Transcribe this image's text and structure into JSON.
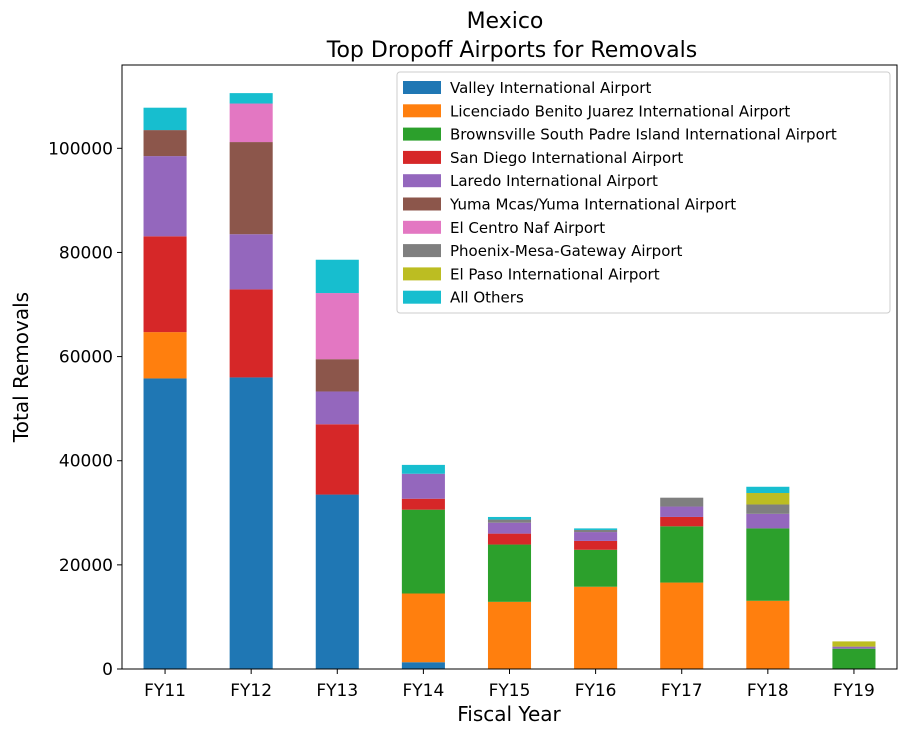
{
  "chart_data": {
    "type": "bar",
    "stacked": true,
    "title_line1": "Mexico",
    "title_line2": "Top Dropoff Airports for Removals",
    "xlabel": "Fiscal Year",
    "ylabel": "Total Removals",
    "categories": [
      "FY11",
      "FY12",
      "FY13",
      "FY14",
      "FY15",
      "FY16",
      "FY17",
      "FY18",
      "FY19"
    ],
    "ylim": [
      0,
      116000
    ],
    "yticks": [
      0,
      20000,
      40000,
      60000,
      80000,
      100000
    ],
    "legend_position": "top-right",
    "series": [
      {
        "name": "Valley International Airport",
        "color": "#1f77b4",
        "values": [
          55800,
          56000,
          33500,
          1300,
          0,
          0,
          0,
          0,
          0
        ]
      },
      {
        "name": "Licenciado Benito Juarez International Airport",
        "color": "#ff7f0e",
        "values": [
          8900,
          0,
          0,
          13200,
          12900,
          15800,
          16600,
          13100,
          0
        ]
      },
      {
        "name": "Brownsville South Padre Island International Airport",
        "color": "#2ca02c",
        "values": [
          0,
          0,
          0,
          16100,
          11000,
          7100,
          10800,
          13900,
          3900
        ]
      },
      {
        "name": "San Diego International Airport",
        "color": "#d62728",
        "values": [
          18400,
          16900,
          13500,
          2100,
          2100,
          1700,
          1800,
          0,
          0
        ]
      },
      {
        "name": "Laredo International Airport",
        "color": "#9467bd",
        "values": [
          15400,
          10600,
          6300,
          4800,
          2100,
          1700,
          2000,
          2800,
          400
        ]
      },
      {
        "name": "Yuma Mcas/Yuma International Airport",
        "color": "#8c564b",
        "values": [
          5000,
          17700,
          6200,
          0,
          0,
          0,
          0,
          0,
          0
        ]
      },
      {
        "name": "El Centro Naf Airport",
        "color": "#e377c2",
        "values": [
          0,
          7400,
          12700,
          0,
          0,
          0,
          0,
          0,
          0
        ]
      },
      {
        "name": "Phoenix-Mesa-Gateway Airport",
        "color": "#7f7f7f",
        "values": [
          0,
          0,
          0,
          0,
          600,
          400,
          1700,
          1800,
          0
        ]
      },
      {
        "name": "El Paso International Airport",
        "color": "#bcbd22",
        "values": [
          0,
          0,
          0,
          0,
          0,
          0,
          0,
          2200,
          1000
        ]
      },
      {
        "name": "All Others",
        "color": "#17becf",
        "values": [
          4300,
          2000,
          6400,
          1700,
          500,
          300,
          0,
          1200,
          0
        ]
      }
    ]
  }
}
